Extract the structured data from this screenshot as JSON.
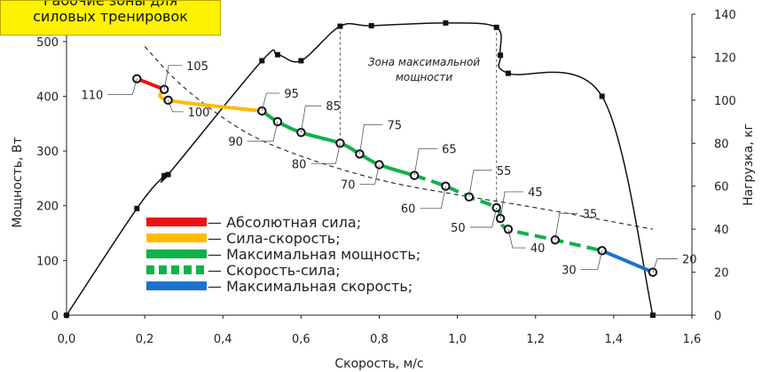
{
  "banner": {
    "line1": "Рабочие зоны для",
    "line2": "силовых тренировок"
  },
  "chart_data": {
    "type": "line",
    "xlabel": "Скорость, м/с",
    "ylabel_left": "Мощность, Вт",
    "ylabel_right": "Нагрузка, кг",
    "xlim": [
      0,
      1.6
    ],
    "ylim_left": [
      0,
      550
    ],
    "ylim_right": [
      0,
      140
    ],
    "x_ticks": [
      "0,0",
      "0,2",
      "0,4",
      "0,6",
      "0,8",
      "1,0",
      "1,2",
      "1,4",
      "1,6"
    ],
    "y_left_ticks": [
      "0",
      "100",
      "200",
      "300",
      "400",
      "500"
    ],
    "y_right_ticks": [
      "0",
      "20",
      "40",
      "60",
      "80",
      "100",
      "120",
      "140"
    ],
    "grid": false,
    "annotation": "Зона максимальной мощности",
    "zone_bounds_x": [
      0.7,
      1.1
    ],
    "power_series": {
      "x": [
        0,
        0.18,
        0.25,
        0.26,
        0.5,
        0.54,
        0.6,
        0.7,
        0.78,
        0.97,
        1.1,
        1.11,
        1.13,
        1.37,
        1.5
      ],
      "y": [
        0,
        195,
        255,
        257,
        465,
        476,
        465,
        528,
        529,
        534,
        526,
        475,
        442,
        400,
        0
      ]
    },
    "load_curve": {
      "x": [
        0.18,
        0.25,
        0.26,
        0.5,
        0.54,
        0.6,
        0.7,
        0.75,
        0.8,
        0.89,
        0.97,
        1.03,
        1.1,
        1.11,
        1.13,
        1.25,
        1.37,
        1.5
      ],
      "y": [
        110,
        105,
        100,
        95,
        90,
        85,
        80,
        75,
        70,
        65,
        60,
        55,
        50,
        45,
        40,
        35,
        30,
        20
      ]
    },
    "trend": {
      "x": [
        0.2,
        0.3,
        0.45,
        0.6,
        0.8,
        1.0,
        1.2,
        1.5
      ],
      "y": [
        125,
        106,
        86,
        74,
        63,
        56,
        50,
        40
      ]
    },
    "zones": [
      {
        "name": "Абсолютная сила",
        "color": "#ee1111",
        "style": "solid",
        "from": 0,
        "to": 1
      },
      {
        "name": "Сила-скорость",
        "color": "#ffbb00",
        "style": "solid",
        "from": 1,
        "to": 3
      },
      {
        "name": "Максимальная мощность",
        "color": "#11b04a",
        "style": "solid",
        "from": 3,
        "to": 9
      },
      {
        "name": "Скорость-сила",
        "color": "#11b04a",
        "style": "dashed",
        "from": 9,
        "to": 16
      },
      {
        "name": "Максимальная скорость",
        "color": "#1a73c8",
        "style": "solid",
        "from": 16,
        "to": 17
      }
    ],
    "legend": {
      "placement": "bottom-left",
      "items": [
        "— Абсолютная сила;",
        "— Сила-скорость;",
        "— Максимальная мощность;",
        "— Скорость-сила;",
        "— Максимальная скорость;"
      ]
    }
  }
}
